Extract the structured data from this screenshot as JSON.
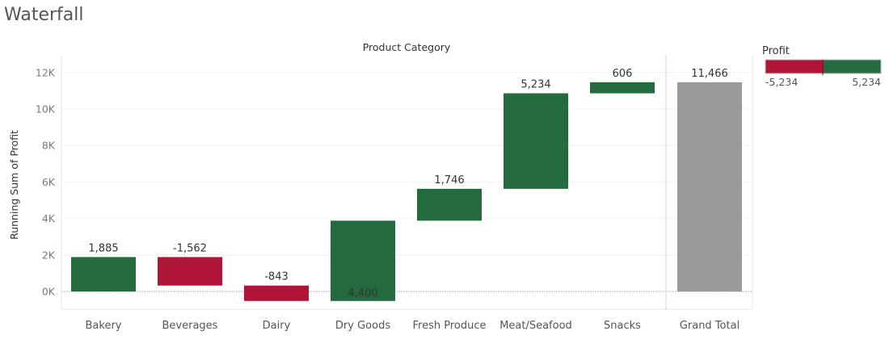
{
  "title": "Waterfall",
  "chart_data": {
    "type": "bar",
    "subtype": "waterfall",
    "column_header": "Product Category",
    "ylabel": "Running Sum of Profit",
    "ylim": [
      -600,
      12600
    ],
    "yticks": [
      0,
      2000,
      4000,
      6000,
      8000,
      10000,
      12000
    ],
    "ytick_labels": [
      "0K",
      "2K",
      "4K",
      "6K",
      "8K",
      "10K",
      "12K"
    ],
    "categories": [
      "Bakery",
      "Beverages",
      "Dairy",
      "Dry Goods",
      "Fresh Produce",
      "Meat/Seafood",
      "Snacks"
    ],
    "values": [
      1885,
      -1562,
      -843,
      4400,
      1746,
      5234,
      606
    ],
    "value_labels": [
      "1,885",
      "-1,562",
      "-843",
      "4,400",
      "1,746",
      "5,234",
      "606"
    ],
    "total": {
      "label": "Grand Total",
      "value": 11466,
      "value_label": "11,466"
    },
    "colors": {
      "positive": "#236a3e",
      "negative": "#b01437",
      "total": "#9a9a9a"
    },
    "grid": true,
    "legend": {
      "title": "Profit",
      "min_label": "-5,234",
      "max_label": "5,234",
      "position": "top-right"
    }
  }
}
